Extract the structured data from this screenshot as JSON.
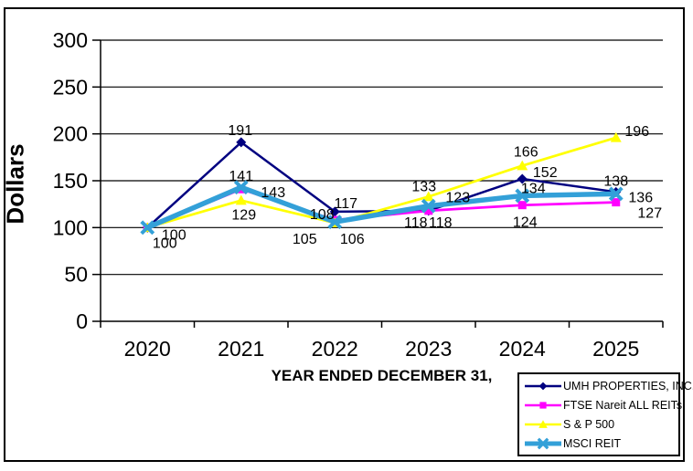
{
  "figure": {
    "background": "#FFFFFF",
    "border_color": "#000000"
  },
  "chart_data": {
    "type": "line",
    "title": "",
    "xlabel": "YEAR ENDED DECEMBER 31,",
    "ylabel": "Dollars",
    "ylim": [
      0,
      300
    ],
    "yticks": [
      0,
      50,
      100,
      150,
      200,
      250,
      300
    ],
    "categories": [
      "2020",
      "2021",
      "2022",
      "2023",
      "2024",
      "2025"
    ],
    "grid": true,
    "legend_position": "bottom-right",
    "axis_color": "#000000",
    "gridline_color": "#000000",
    "label_color": "#000000",
    "series": [
      {
        "name": "UMH PROPERTIES, INC.",
        "color": "#000080",
        "marker": "diamond",
        "line_width": 2.5,
        "values": [
          100,
          191,
          117,
          118,
          152,
          138
        ],
        "show_labels": [
          true,
          true,
          true,
          true,
          true,
          true
        ],
        "label_offsets": [
          [
            29,
            8
          ],
          [
            -1,
            -13
          ],
          [
            12,
            -9
          ],
          [
            13,
            13
          ],
          [
            25,
            -7
          ],
          [
            0,
            -12
          ]
        ]
      },
      {
        "name": "FTSE Nareit ALL REITs",
        "color": "#FF00FF",
        "marker": "square",
        "line_width": 2.75,
        "values": [
          100,
          141,
          108,
          118,
          124,
          127
        ],
        "show_labels": [
          true,
          true,
          true,
          true,
          true,
          true
        ],
        "label_offsets": [
          [
            19,
            17
          ],
          [
            0,
            -14
          ],
          [
            -14,
            -6
          ],
          [
            -14,
            13
          ],
          [
            3,
            19
          ],
          [
            37,
            12
          ]
        ]
      },
      {
        "name": "S & P 500",
        "color": "#FFFF00",
        "marker": "triangle",
        "line_width": 2.75,
        "values": [
          100,
          129,
          105,
          133,
          166,
          196
        ],
        "show_labels": [
          false,
          true,
          true,
          true,
          true,
          true
        ],
        "label_offsets": [
          [
            0,
            0
          ],
          [
            3,
            16
          ],
          [
            -33,
            18
          ],
          [
            -5,
            -11
          ],
          [
            4,
            -15
          ],
          [
            23,
            -7
          ]
        ]
      },
      {
        "name": "MSCI REIT",
        "color": "#33A0D8",
        "marker": "x",
        "line_width": 5.5,
        "values": [
          100,
          143,
          106,
          123,
          134,
          136
        ],
        "show_labels": [
          false,
          true,
          true,
          true,
          true,
          true
        ],
        "label_offsets": [
          [
            0,
            0
          ],
          [
            35,
            6
          ],
          [
            19,
            19
          ],
          [
            32,
            -9
          ],
          [
            12,
            -8
          ],
          [
            27,
            4
          ]
        ]
      }
    ]
  }
}
